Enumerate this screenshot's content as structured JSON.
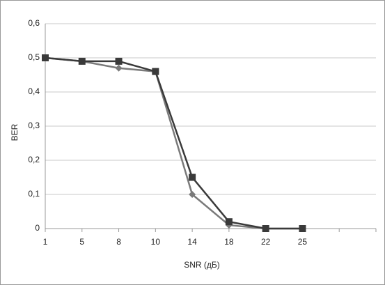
{
  "chart_data": {
    "type": "line",
    "x_label": "SNR (дБ)",
    "y_label": "BER",
    "categories": [
      "1",
      "5",
      "8",
      "10",
      "14",
      "18",
      "22",
      "25",
      null,
      null
    ],
    "series": [
      {
        "color": "#3a3a3a",
        "marker": "square",
        "values": [
          0.5,
          0.49,
          0.49,
          0.46,
          0.15,
          0.02,
          0,
          0,
          null,
          null
        ]
      },
      {
        "color": "#7a7a7a",
        "marker": "diamond",
        "values": [
          0.5,
          0.49,
          0.47,
          0.46,
          0.1,
          0.01,
          0,
          0,
          null,
          null
        ]
      }
    ],
    "ylim": [
      0,
      0.6
    ],
    "yticks": [
      0,
      {
        "value": 0.1,
        "label": "0,1"
      },
      {
        "value": 0.2,
        "label": "0,2"
      },
      {
        "value": 0.3,
        "label": "0,3"
      },
      {
        "value": 0.4,
        "label": "0,4"
      },
      {
        "value": 0.5,
        "label": "0,5"
      },
      {
        "value": 0.6,
        "label": "0,6"
      }
    ],
    "grid": true
  }
}
